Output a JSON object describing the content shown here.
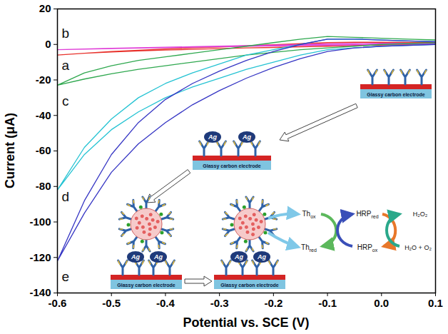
{
  "chart_data": {
    "type": "line",
    "x_label": "Potential vs. SCE (V)",
    "y_label": "Current (μA)",
    "xlim": [
      -0.6,
      0.1
    ],
    "xticks": [
      -0.6,
      -0.5,
      -0.4,
      -0.3,
      -0.2,
      -0.1,
      {
        "value": 0,
        "label": "0.0"
      },
      0.1
    ],
    "ylim": [
      -140,
      20
    ],
    "yticks": [
      -140,
      -120,
      -100,
      -80,
      -60,
      -40,
      -20,
      0,
      20
    ],
    "grid": false,
    "x": [
      0.1,
      0.05,
      0,
      -0.05,
      -0.1,
      -0.15,
      -0.2,
      -0.25,
      -0.3,
      -0.35,
      -0.4,
      -0.45,
      -0.5,
      -0.55,
      -0.6,
      -0.55,
      -0.5,
      -0.45,
      -0.4,
      -0.35,
      -0.3,
      -0.25,
      -0.2,
      -0.15,
      -0.1,
      -0.05,
      0,
      0.05,
      0.1
    ],
    "series": [
      {
        "name": "a",
        "color": "#e8322c",
        "label_x": -0.585,
        "label_y": -12,
        "values": [
          0.5,
          0,
          -0.3,
          -0.6,
          -1,
          -1.3,
          -1.7,
          -2,
          -2.4,
          -2.8,
          -3.2,
          -3.7,
          -4.3,
          -5,
          -6,
          -5,
          -4,
          -3.3,
          -2.6,
          -2,
          -1.4,
          -0.8,
          -0.2,
          0.4,
          1,
          1.2,
          1.2,
          1.1,
          1
        ]
      },
      {
        "name": "b",
        "color": "#e040d8",
        "label_x": -0.585,
        "label_y": 6,
        "values": [
          0.5,
          0.2,
          0,
          -0.2,
          -0.4,
          -0.6,
          -0.8,
          -1,
          -1.2,
          -1.5,
          -1.8,
          -2.1,
          -2.4,
          -2.7,
          -3,
          -2.6,
          -2.2,
          -1.9,
          -1.6,
          -1.3,
          -1,
          -0.7,
          -0.4,
          -0.1,
          0.3,
          0.5,
          0.6,
          0.6,
          0.6
        ]
      },
      {
        "name": "c",
        "color": "#2fa84f",
        "label_x": -0.585,
        "label_y": -32,
        "values": [
          1,
          0.5,
          0,
          -1,
          -2,
          -3,
          -4.5,
          -6,
          -8,
          -10,
          -12,
          -14,
          -16.5,
          -19.5,
          -23,
          -16,
          -12,
          -9,
          -7,
          -5,
          -3,
          -1,
          1,
          3,
          4.5,
          4,
          3.5,
          3,
          2.5
        ]
      },
      {
        "name": "d",
        "color": "#25c3d3",
        "label_x": -0.585,
        "label_y": -86,
        "values": [
          0,
          -0.5,
          -1,
          -2,
          -3,
          -6,
          -10,
          -14,
          -19,
          -24,
          -30,
          -38,
          -48,
          -62,
          -82,
          -58,
          -42,
          -30,
          -22,
          -16,
          -11,
          -6,
          -3,
          0,
          3,
          3,
          2.5,
          2,
          1.5
        ]
      },
      {
        "name": "e",
        "color": "#3636c4",
        "label_x": -0.585,
        "label_y": -131,
        "values": [
          0,
          -0.5,
          -1,
          -2,
          -4,
          -8,
          -13,
          -19,
          -26,
          -34,
          -44,
          -56,
          -72,
          -95,
          -122,
          -88,
          -62,
          -44,
          -31,
          -22,
          -15,
          -9,
          -4,
          0,
          3,
          3,
          2.5,
          2,
          1.5
        ]
      }
    ],
    "schematic": {
      "electrode_label": "Glassy carbon electrode",
      "antigen_label": "Ag",
      "th_ox": {
        "base": "Th",
        "sub": "ox"
      },
      "th_red": {
        "base": "Th",
        "sub": "red"
      },
      "hrp_red": {
        "base": "HRP",
        "sub": "red"
      },
      "hrp_ox": {
        "base": "HRP",
        "sub": "ox"
      },
      "h2o2": {
        "base": "H₂O₂"
      },
      "products": {
        "base": "H₂O + O₂"
      }
    }
  }
}
